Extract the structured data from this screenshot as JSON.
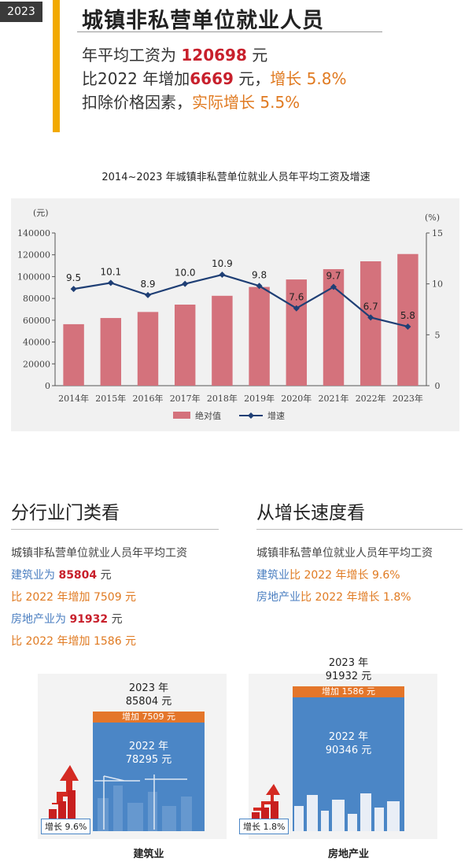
{
  "header": {
    "year_tag": "2023 年",
    "title": "城镇非私营单位就业人员",
    "line1_pre": "年平均工资为 ",
    "line1_value": "120698",
    "line1_post": " 元",
    "line2_pre": "比2022 年增加",
    "line2_value": "6669",
    "line2_mid": " 元，",
    "line2_growth": "增长 5.8%",
    "line3_pre": "扣除价格因素，",
    "line3_growth": "实际增长 5.5%"
  },
  "chart_data": {
    "type": "bar",
    "title": "2014~2023 年城镇非私营单位就业人员年平均工资及增速",
    "categories": [
      "2014年",
      "2015年",
      "2016年",
      "2017年",
      "2018年",
      "2019年",
      "2020年",
      "2021年",
      "2022年",
      "2023年"
    ],
    "series": [
      {
        "name": "绝对值",
        "type": "bar",
        "axis": "left",
        "values": [
          56360,
          62029,
          67569,
          74318,
          82413,
          90501,
          97379,
          106837,
          114029,
          120698
        ]
      },
      {
        "name": "增速",
        "type": "line",
        "axis": "right",
        "values": [
          9.5,
          10.1,
          8.9,
          10.0,
          10.9,
          9.8,
          7.6,
          9.7,
          6.7,
          5.8
        ],
        "labels": [
          "9.5",
          "10.1",
          "8.9",
          "10.0",
          "10.9",
          "9.8",
          "7.6",
          "9.7",
          "6.7",
          "5.8"
        ]
      }
    ],
    "ylabel": "(元)",
    "y2label": "(%)",
    "ylim": [
      0,
      140000
    ],
    "y_ticks": [
      "0",
      "20000",
      "40000",
      "60000",
      "80000",
      "100000",
      "120000",
      "140000"
    ],
    "y2lim": [
      0,
      15
    ],
    "y2_ticks": [
      "0",
      "5",
      "10",
      "15"
    ],
    "legend_position": "bottom-center",
    "grid": false,
    "colors": {
      "bar": "#d4727c",
      "line": "#1f3f75",
      "panel": "#f1f1f1"
    }
  },
  "left_section": {
    "title": "分行业门类看",
    "l1": "城镇非私营单位就业人员年平均工资",
    "l2_pre": "建筑业为 ",
    "l2_value": "85804",
    "l2_post": " 元",
    "l3": "比 2022 年增加 7509 元",
    "l4_pre": "房地产业为 ",
    "l4_value": "91932",
    "l4_post": " 元",
    "l5": "比 2022 年增加 1586 元"
  },
  "right_section": {
    "title": "从增长速度看",
    "l1": "城镇非私营单位就业人员年平均工资",
    "l2_a": "建筑业",
    "l2_b": "比 2022 年增长 9.6%",
    "l3_a": "房地产业",
    "l3_b": "比 2022 年增长 1.8%"
  },
  "illus_left": {
    "top_line1": "2023 年",
    "top_line2": "85804 元",
    "increase": "增加 7509 元",
    "base_line1": "2022 年",
    "base_line2": "78295 元",
    "badge": "增长 9.6%",
    "caption": "建筑业"
  },
  "illus_right": {
    "top_line1": "2023 年",
    "top_line2": "91932 元",
    "increase": "增加 1586 元",
    "base_line1": "2022 年",
    "base_line2": "90346 元",
    "badge": "增长 1.8%",
    "caption": "房地产业"
  }
}
